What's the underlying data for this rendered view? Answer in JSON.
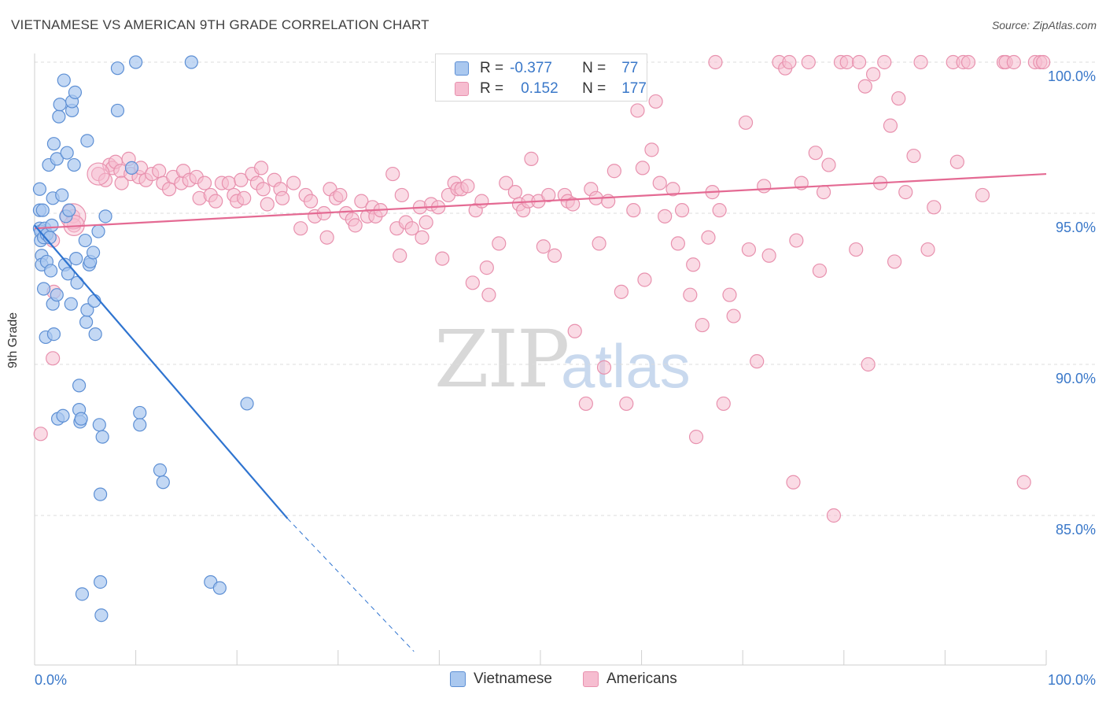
{
  "title": "VIETNAMESE VS AMERICAN 9TH GRADE CORRELATION CHART",
  "source": "Source: ZipAtlas.com",
  "watermark": {
    "zip": "ZIP",
    "atlas": "atlas"
  },
  "legend_top": [
    {
      "r_label": "R =",
      "r_value": "-0.377",
      "n_label": "N =",
      "n_value": "77"
    },
    {
      "r_label": "R =",
      "r_value": "0.152",
      "n_label": "N =",
      "n_value": "177"
    }
  ],
  "legend_bottom": [
    "Vietnamese",
    "Americans"
  ],
  "colors": {
    "vietnamese_fill": "#aac8ef",
    "vietnamese_stroke": "#5d8fd4",
    "vietnamese_line": "#2f74d0",
    "americans_fill": "#f6bdd0",
    "americans_stroke": "#e891ae",
    "americans_line": "#e46a93",
    "tick_label": "#3a78c9",
    "grid": "#dcdcdc"
  },
  "chart_data": {
    "type": "scatter",
    "title": "VIETNAMESE VS AMERICAN 9TH GRADE CORRELATION CHART",
    "xlabel": "",
    "ylabel": "9th Grade",
    "xlim": [
      0,
      100
    ],
    "ylim": [
      80.5,
      100.8
    ],
    "x_tick_labels": [
      "0.0%",
      "100.0%"
    ],
    "y_ticks": [
      85,
      90,
      95,
      100
    ],
    "y_tick_labels": [
      "85.0%",
      "90.0%",
      "95.0%",
      "100.0%"
    ],
    "grid": "horizontal dashed",
    "legend_placement": "top-center and bottom",
    "series": [
      {
        "name": "Vietnamese",
        "R": -0.377,
        "N": 77,
        "trend": {
          "x": [
            0,
            25,
            37.5
          ],
          "y": [
            94.6,
            84.9,
            80.5
          ],
          "solid_until_x": 25
        },
        "points": [
          [
            0.5,
            95.8
          ],
          [
            0.5,
            95.1
          ],
          [
            0.5,
            94.5
          ],
          [
            0.6,
            94.4
          ],
          [
            0.6,
            94.1
          ],
          [
            0.7,
            93.6
          ],
          [
            0.7,
            93.3
          ],
          [
            0.8,
            95.1
          ],
          [
            0.9,
            92.5
          ],
          [
            0.9,
            94.2
          ],
          [
            1.0,
            94.5
          ],
          [
            1.1,
            90.9
          ],
          [
            1.2,
            93.4
          ],
          [
            1.2,
            94.3
          ],
          [
            1.4,
            96.6
          ],
          [
            1.5,
            94.2
          ],
          [
            1.6,
            93.1
          ],
          [
            1.7,
            94.6
          ],
          [
            1.8,
            95.5
          ],
          [
            1.8,
            92.0
          ],
          [
            1.9,
            97.3
          ],
          [
            1.9,
            91.0
          ],
          [
            2.2,
            96.8
          ],
          [
            2.2,
            92.3
          ],
          [
            2.3,
            88.2
          ],
          [
            2.4,
            98.2
          ],
          [
            2.5,
            98.6
          ],
          [
            2.7,
            95.6
          ],
          [
            2.8,
            88.3
          ],
          [
            2.9,
            99.4
          ],
          [
            3.0,
            93.3
          ],
          [
            3.1,
            94.9
          ],
          [
            3.2,
            97.0
          ],
          [
            3.3,
            93.0
          ],
          [
            3.4,
            95.1
          ],
          [
            3.6,
            92.0
          ],
          [
            3.7,
            98.4
          ],
          [
            3.7,
            98.7
          ],
          [
            3.9,
            96.6
          ],
          [
            4.0,
            99.0
          ],
          [
            4.1,
            93.5
          ],
          [
            4.2,
            92.7
          ],
          [
            4.4,
            89.3
          ],
          [
            4.4,
            88.5
          ],
          [
            4.5,
            88.1
          ],
          [
            4.6,
            88.2
          ],
          [
            4.7,
            82.4
          ],
          [
            5.0,
            94.1
          ],
          [
            5.1,
            91.4
          ],
          [
            5.2,
            91.8
          ],
          [
            5.2,
            97.4
          ],
          [
            5.4,
            93.3
          ],
          [
            5.5,
            93.4
          ],
          [
            5.8,
            93.7
          ],
          [
            5.9,
            92.1
          ],
          [
            6.0,
            91.0
          ],
          [
            6.3,
            94.4
          ],
          [
            6.4,
            88.0
          ],
          [
            6.5,
            85.7
          ],
          [
            6.5,
            82.8
          ],
          [
            6.6,
            81.7
          ],
          [
            6.7,
            87.6
          ],
          [
            7.0,
            94.9
          ],
          [
            8.2,
            98.4
          ],
          [
            8.2,
            99.8
          ],
          [
            9.6,
            96.5
          ],
          [
            10.0,
            100.0
          ],
          [
            10.4,
            88.4
          ],
          [
            10.4,
            88.0
          ],
          [
            12.4,
            86.5
          ],
          [
            12.7,
            86.1
          ],
          [
            15.5,
            100.0
          ],
          [
            17.4,
            82.8
          ],
          [
            18.3,
            82.6
          ],
          [
            21.0,
            88.7
          ]
        ]
      },
      {
        "name": "Americans",
        "R": 0.152,
        "N": 177,
        "trend": {
          "x": [
            0,
            100
          ],
          "y": [
            94.5,
            96.3
          ]
        },
        "points": [
          [
            0.6,
            87.7
          ],
          [
            1.8,
            94.1
          ],
          [
            1.8,
            90.2
          ],
          [
            1.9,
            92.4
          ],
          [
            3.8,
            94.9
          ],
          [
            3.9,
            94.6
          ],
          [
            6.3,
            96.3
          ],
          [
            7.0,
            96.1
          ],
          [
            7.4,
            96.6
          ],
          [
            7.7,
            96.5
          ],
          [
            8.0,
            96.7
          ],
          [
            8.5,
            96.4
          ],
          [
            8.6,
            96.0
          ],
          [
            9.3,
            96.8
          ],
          [
            9.5,
            96.3
          ],
          [
            10.3,
            96.2
          ],
          [
            10.5,
            96.5
          ],
          [
            11.0,
            96.1
          ],
          [
            11.6,
            96.3
          ],
          [
            12.3,
            96.4
          ],
          [
            12.7,
            96.0
          ],
          [
            13.3,
            95.8
          ],
          [
            13.7,
            96.2
          ],
          [
            14.5,
            96.0
          ],
          [
            14.7,
            96.4
          ],
          [
            15.3,
            96.1
          ],
          [
            16.0,
            96.2
          ],
          [
            16.3,
            95.5
          ],
          [
            16.8,
            96.0
          ],
          [
            17.4,
            95.6
          ],
          [
            17.9,
            95.4
          ],
          [
            18.5,
            96.0
          ],
          [
            19.2,
            96.0
          ],
          [
            19.7,
            95.6
          ],
          [
            20.0,
            95.4
          ],
          [
            20.4,
            96.1
          ],
          [
            20.7,
            95.5
          ],
          [
            21.5,
            96.3
          ],
          [
            22.0,
            96.0
          ],
          [
            22.4,
            96.5
          ],
          [
            22.6,
            95.8
          ],
          [
            23.0,
            95.3
          ],
          [
            23.7,
            96.1
          ],
          [
            24.3,
            95.8
          ],
          [
            24.5,
            95.5
          ],
          [
            25.6,
            96.0
          ],
          [
            26.3,
            94.5
          ],
          [
            26.8,
            95.6
          ],
          [
            27.3,
            95.4
          ],
          [
            27.7,
            94.9
          ],
          [
            28.6,
            95.0
          ],
          [
            28.9,
            94.2
          ],
          [
            29.2,
            95.8
          ],
          [
            29.8,
            95.5
          ],
          [
            30.2,
            95.6
          ],
          [
            30.8,
            95.0
          ],
          [
            31.4,
            94.8
          ],
          [
            31.7,
            94.6
          ],
          [
            32.3,
            95.4
          ],
          [
            32.9,
            94.9
          ],
          [
            33.4,
            95.2
          ],
          [
            33.7,
            94.9
          ],
          [
            34.2,
            95.1
          ],
          [
            35.4,
            96.3
          ],
          [
            35.8,
            94.5
          ],
          [
            36.1,
            93.6
          ],
          [
            36.3,
            95.6
          ],
          [
            36.7,
            94.7
          ],
          [
            37.3,
            94.5
          ],
          [
            38.1,
            95.2
          ],
          [
            38.3,
            94.2
          ],
          [
            38.7,
            94.7
          ],
          [
            39.2,
            95.3
          ],
          [
            39.9,
            95.2
          ],
          [
            40.3,
            93.5
          ],
          [
            40.9,
            95.6
          ],
          [
            41.5,
            96.0
          ],
          [
            41.8,
            95.8
          ],
          [
            42.2,
            95.8
          ],
          [
            42.8,
            95.9
          ],
          [
            43.3,
            92.7
          ],
          [
            43.6,
            95.1
          ],
          [
            44.2,
            95.4
          ],
          [
            44.7,
            93.2
          ],
          [
            44.9,
            92.3
          ],
          [
            45.9,
            94.0
          ],
          [
            46.6,
            96.0
          ],
          [
            47.5,
            95.7
          ],
          [
            47.9,
            95.3
          ],
          [
            48.3,
            95.1
          ],
          [
            48.8,
            95.4
          ],
          [
            49.1,
            96.8
          ],
          [
            49.8,
            95.4
          ],
          [
            50.3,
            93.9
          ],
          [
            50.8,
            95.6
          ],
          [
            51.4,
            93.6
          ],
          [
            52.4,
            95.6
          ],
          [
            52.7,
            95.4
          ],
          [
            53.2,
            95.3
          ],
          [
            53.4,
            91.1
          ],
          [
            54.5,
            88.7
          ],
          [
            55.0,
            95.8
          ],
          [
            55.5,
            95.5
          ],
          [
            55.8,
            94.0
          ],
          [
            56.3,
            89.9
          ],
          [
            56.7,
            95.4
          ],
          [
            57.3,
            96.4
          ],
          [
            58.0,
            92.4
          ],
          [
            58.5,
            88.7
          ],
          [
            59.2,
            95.1
          ],
          [
            59.6,
            98.4
          ],
          [
            60.1,
            96.5
          ],
          [
            60.3,
            92.8
          ],
          [
            61.0,
            97.1
          ],
          [
            61.4,
            98.7
          ],
          [
            61.8,
            96.0
          ],
          [
            62.3,
            94.9
          ],
          [
            63.1,
            95.8
          ],
          [
            63.6,
            94.0
          ],
          [
            64.0,
            95.1
          ],
          [
            64.8,
            92.3
          ],
          [
            65.1,
            93.3
          ],
          [
            65.4,
            87.6
          ],
          [
            66.0,
            91.3
          ],
          [
            66.6,
            94.2
          ],
          [
            67.0,
            95.7
          ],
          [
            67.3,
            100.0
          ],
          [
            67.7,
            95.1
          ],
          [
            68.1,
            88.7
          ],
          [
            68.7,
            92.3
          ],
          [
            69.1,
            91.6
          ],
          [
            70.3,
            98.0
          ],
          [
            70.6,
            93.8
          ],
          [
            71.4,
            90.1
          ],
          [
            72.1,
            95.9
          ],
          [
            72.6,
            93.6
          ],
          [
            73.6,
            100.0
          ],
          [
            74.2,
            99.8
          ],
          [
            74.6,
            100.0
          ],
          [
            75.0,
            86.1
          ],
          [
            75.3,
            94.1
          ],
          [
            75.8,
            96.0
          ],
          [
            76.5,
            100.0
          ],
          [
            77.2,
            97.0
          ],
          [
            77.6,
            93.1
          ],
          [
            78.0,
            95.7
          ],
          [
            78.5,
            96.6
          ],
          [
            79.0,
            85.0
          ],
          [
            79.7,
            100.0
          ],
          [
            80.3,
            100.0
          ],
          [
            81.2,
            93.8
          ],
          [
            81.5,
            100.0
          ],
          [
            82.1,
            99.2
          ],
          [
            82.4,
            90.0
          ],
          [
            82.9,
            99.6
          ],
          [
            83.6,
            96.0
          ],
          [
            84.0,
            100.0
          ],
          [
            84.6,
            97.9
          ],
          [
            85.0,
            93.4
          ],
          [
            85.4,
            98.8
          ],
          [
            86.1,
            95.7
          ],
          [
            86.9,
            96.9
          ],
          [
            87.6,
            100.0
          ],
          [
            88.3,
            93.8
          ],
          [
            88.9,
            95.2
          ],
          [
            90.8,
            100.0
          ],
          [
            91.2,
            96.7
          ],
          [
            91.8,
            100.0
          ],
          [
            92.3,
            100.0
          ],
          [
            93.7,
            95.6
          ],
          [
            95.8,
            100.0
          ],
          [
            96.0,
            100.0
          ],
          [
            96.8,
            100.0
          ],
          [
            97.8,
            86.1
          ],
          [
            98.9,
            100.0
          ],
          [
            99.4,
            100.0
          ],
          [
            99.7,
            100.0
          ]
        ]
      }
    ]
  }
}
